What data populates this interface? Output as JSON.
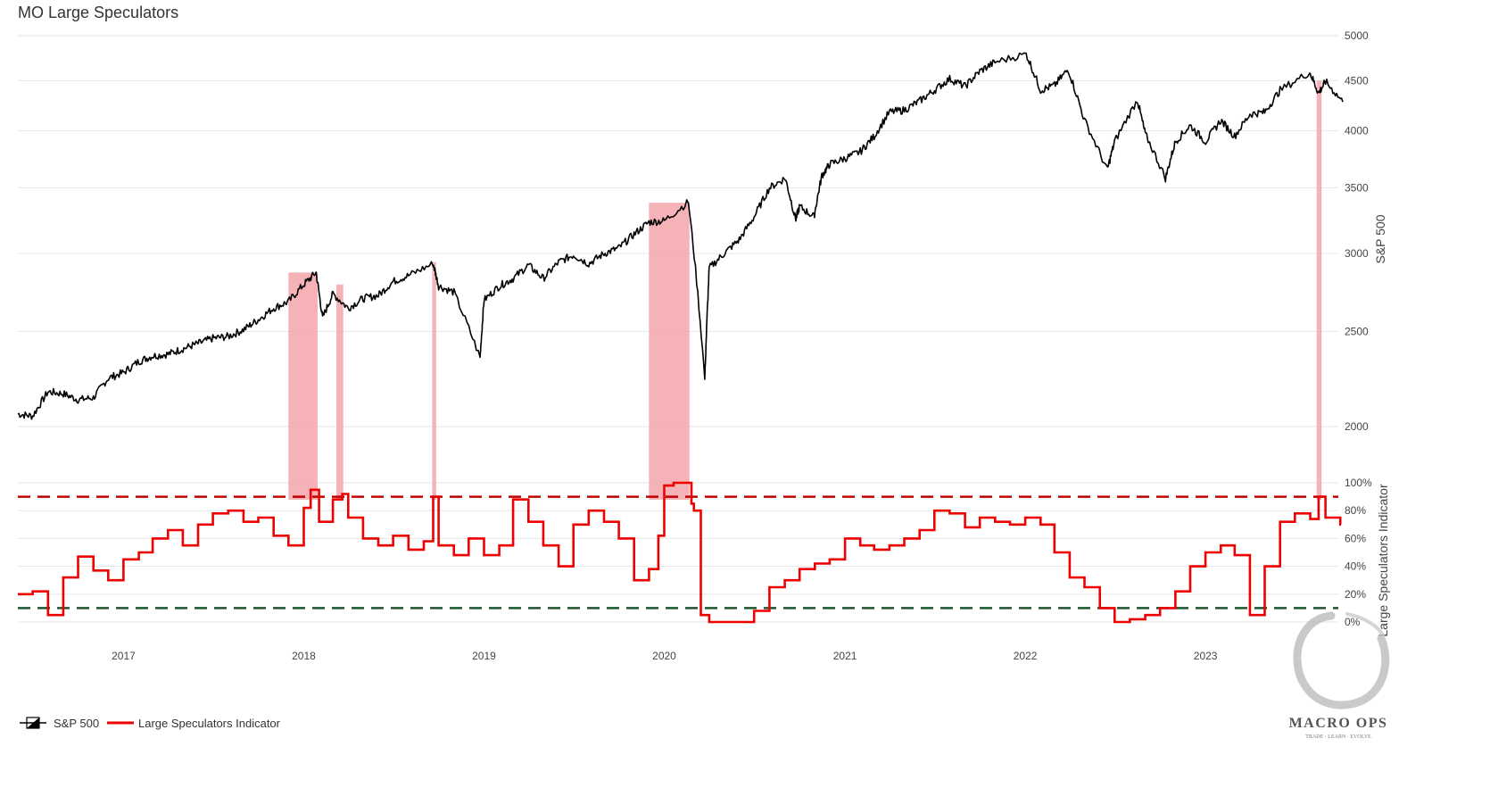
{
  "title": "MO Large Speculators",
  "colors": {
    "spx": "#000000",
    "indicator": "#ee0000",
    "upper_threshold": "#c00000",
    "lower_threshold": "#1e5631",
    "highlight": "#f4a6aa",
    "grid": "#e6e6e6"
  },
  "legend": [
    {
      "label": "S&P 500",
      "icon": "candlestick-legend-icon"
    },
    {
      "label": "Large Speculators Indicator",
      "icon": "red-line-legend-icon"
    }
  ],
  "logo": {
    "text": "MACRO OPS",
    "tagline": "TRADE · LEARN · EVOLVE"
  },
  "chart_data": [
    {
      "type": "line",
      "name": "S&P 500",
      "ylabel": "S&P 500",
      "scale": "log",
      "yticks": [
        2000,
        2500,
        3000,
        3500,
        4000,
        4500,
        5000
      ],
      "ylim": [
        1800,
        5000
      ],
      "xticks": [
        "2017",
        "2018",
        "2019",
        "2020",
        "2021",
        "2022",
        "2023"
      ],
      "x": [
        "2016-06-01",
        "2016-07-01",
        "2016-08-01",
        "2016-09-01",
        "2016-10-01",
        "2016-11-01",
        "2016-12-01",
        "2017-01-01",
        "2017-02-01",
        "2017-03-01",
        "2017-04-01",
        "2017-05-01",
        "2017-06-01",
        "2017-07-01",
        "2017-08-01",
        "2017-09-01",
        "2017-10-01",
        "2017-11-01",
        "2017-12-01",
        "2018-01-01",
        "2018-01-26",
        "2018-02-08",
        "2018-03-01",
        "2018-04-01",
        "2018-05-01",
        "2018-06-01",
        "2018-07-01",
        "2018-08-01",
        "2018-09-20",
        "2018-10-01",
        "2018-11-01",
        "2018-12-24",
        "2019-01-01",
        "2019-02-01",
        "2019-03-01",
        "2019-04-01",
        "2019-05-01",
        "2019-06-01",
        "2019-07-01",
        "2019-08-01",
        "2019-09-01",
        "2019-10-01",
        "2019-11-01",
        "2019-12-01",
        "2020-01-01",
        "2020-02-19",
        "2020-03-23",
        "2020-04-01",
        "2020-05-01",
        "2020-06-01",
        "2020-07-01",
        "2020-08-01",
        "2020-09-02",
        "2020-09-23",
        "2020-10-01",
        "2020-10-30",
        "2020-11-15",
        "2020-12-01",
        "2021-01-01",
        "2021-02-01",
        "2021-03-01",
        "2021-04-01",
        "2021-05-01",
        "2021-06-01",
        "2021-07-01",
        "2021-08-01",
        "2021-09-01",
        "2021-10-01",
        "2021-11-01",
        "2022-01-03",
        "2022-02-01",
        "2022-03-01",
        "2022-03-29",
        "2022-05-01",
        "2022-06-16",
        "2022-07-01",
        "2022-08-16",
        "2022-09-01",
        "2022-10-12",
        "2022-11-01",
        "2022-12-01",
        "2023-01-01",
        "2023-02-01",
        "2023-03-01",
        "2023-04-01",
        "2023-05-01",
        "2023-06-01",
        "2023-07-31",
        "2023-08-18",
        "2023-09-01",
        "2023-10-06"
      ],
      "values": [
        2060,
        2050,
        2170,
        2160,
        2130,
        2140,
        2240,
        2270,
        2330,
        2360,
        2370,
        2400,
        2430,
        2460,
        2470,
        2510,
        2570,
        2640,
        2680,
        2790,
        2870,
        2580,
        2730,
        2640,
        2700,
        2720,
        2810,
        2850,
        2930,
        2780,
        2740,
        2350,
        2690,
        2780,
        2830,
        2920,
        2830,
        2940,
        2990,
        2930,
        3000,
        3040,
        3140,
        3230,
        3240,
        3386,
        2237,
        2900,
        3000,
        3100,
        3270,
        3500,
        3580,
        3250,
        3350,
        3270,
        3600,
        3700,
        3750,
        3810,
        3950,
        4180,
        4200,
        4290,
        4400,
        4520,
        4440,
        4600,
        4700,
        4790,
        4400,
        4450,
        4620,
        4100,
        3650,
        3900,
        4300,
        3970,
        3580,
        3900,
        4050,
        3900,
        4100,
        3950,
        4160,
        4180,
        4400,
        4590,
        4370,
        4490,
        4280
      ]
    },
    {
      "type": "line",
      "name": "Large Speculators Indicator",
      "ylabel": "Large Speculators Indicator",
      "yticks": [
        "0%",
        "20%",
        "40%",
        "60%",
        "80%",
        "100%"
      ],
      "ylim": [
        0,
        100
      ],
      "upper_threshold": 90,
      "lower_threshold": 10,
      "x": [
        "2016-06-01",
        "2016-07-01",
        "2016-08-01",
        "2016-09-01",
        "2016-10-01",
        "2016-11-01",
        "2016-12-01",
        "2017-01-01",
        "2017-02-01",
        "2017-03-01",
        "2017-04-01",
        "2017-05-01",
        "2017-06-01",
        "2017-07-01",
        "2017-08-01",
        "2017-09-01",
        "2017-10-01",
        "2017-11-01",
        "2017-12-01",
        "2018-01-01",
        "2018-01-15",
        "2018-02-01",
        "2018-03-01",
        "2018-03-20",
        "2018-04-01",
        "2018-05-01",
        "2018-06-01",
        "2018-07-01",
        "2018-08-01",
        "2018-09-01",
        "2018-09-20",
        "2018-10-01",
        "2018-11-01",
        "2018-12-01",
        "2019-01-01",
        "2019-02-01",
        "2019-03-01",
        "2019-04-01",
        "2019-05-01",
        "2019-06-01",
        "2019-07-01",
        "2019-08-01",
        "2019-09-01",
        "2019-10-01",
        "2019-11-01",
        "2019-12-01",
        "2019-12-20",
        "2020-01-01",
        "2020-01-20",
        "2020-02-10",
        "2020-02-25",
        "2020-03-01",
        "2020-03-15",
        "2020-04-01",
        "2020-05-01",
        "2020-06-01",
        "2020-07-01",
        "2020-08-01",
        "2020-09-01",
        "2020-10-01",
        "2020-11-01",
        "2020-12-01",
        "2021-01-01",
        "2021-02-01",
        "2021-03-01",
        "2021-04-01",
        "2021-05-01",
        "2021-06-01",
        "2021-07-01",
        "2021-08-01",
        "2021-09-01",
        "2021-10-01",
        "2021-11-01",
        "2021-12-01",
        "2022-01-01",
        "2022-02-01",
        "2022-03-01",
        "2022-04-01",
        "2022-05-01",
        "2022-06-01",
        "2022-07-01",
        "2022-08-01",
        "2022-09-01",
        "2022-10-01",
        "2022-11-01",
        "2022-12-01",
        "2023-01-01",
        "2023-02-01",
        "2023-03-01",
        "2023-04-01",
        "2023-05-01",
        "2023-06-01",
        "2023-07-01",
        "2023-08-01",
        "2023-08-18",
        "2023-09-01",
        "2023-10-01"
      ],
      "values": [
        20,
        22,
        5,
        32,
        47,
        37,
        30,
        45,
        50,
        60,
        66,
        55,
        70,
        78,
        80,
        72,
        75,
        62,
        55,
        82,
        95,
        72,
        88,
        92,
        75,
        60,
        55,
        62,
        52,
        58,
        90,
        55,
        48,
        60,
        48,
        55,
        88,
        72,
        55,
        40,
        70,
        80,
        72,
        60,
        30,
        38,
        62,
        98,
        100,
        100,
        85,
        80,
        5,
        0,
        0,
        0,
        8,
        25,
        30,
        38,
        42,
        45,
        60,
        55,
        52,
        55,
        60,
        66,
        80,
        78,
        68,
        75,
        72,
        70,
        75,
        70,
        50,
        32,
        25,
        10,
        0,
        2,
        5,
        10,
        22,
        40,
        50,
        55,
        48,
        5,
        40,
        72,
        78,
        74,
        90,
        75,
        70
      ]
    }
  ],
  "highlights": [
    {
      "start": "2017-12-01",
      "end": "2018-01-29",
      "top": 2870
    },
    {
      "start": "2018-03-08",
      "end": "2018-03-22",
      "top": 2790
    },
    {
      "start": "2018-09-18",
      "end": "2018-09-26",
      "top": 2940
    },
    {
      "start": "2019-12-01",
      "end": "2020-02-21",
      "top": 3380
    },
    {
      "start": "2023-08-14",
      "end": "2023-08-24",
      "top": 4500
    }
  ]
}
